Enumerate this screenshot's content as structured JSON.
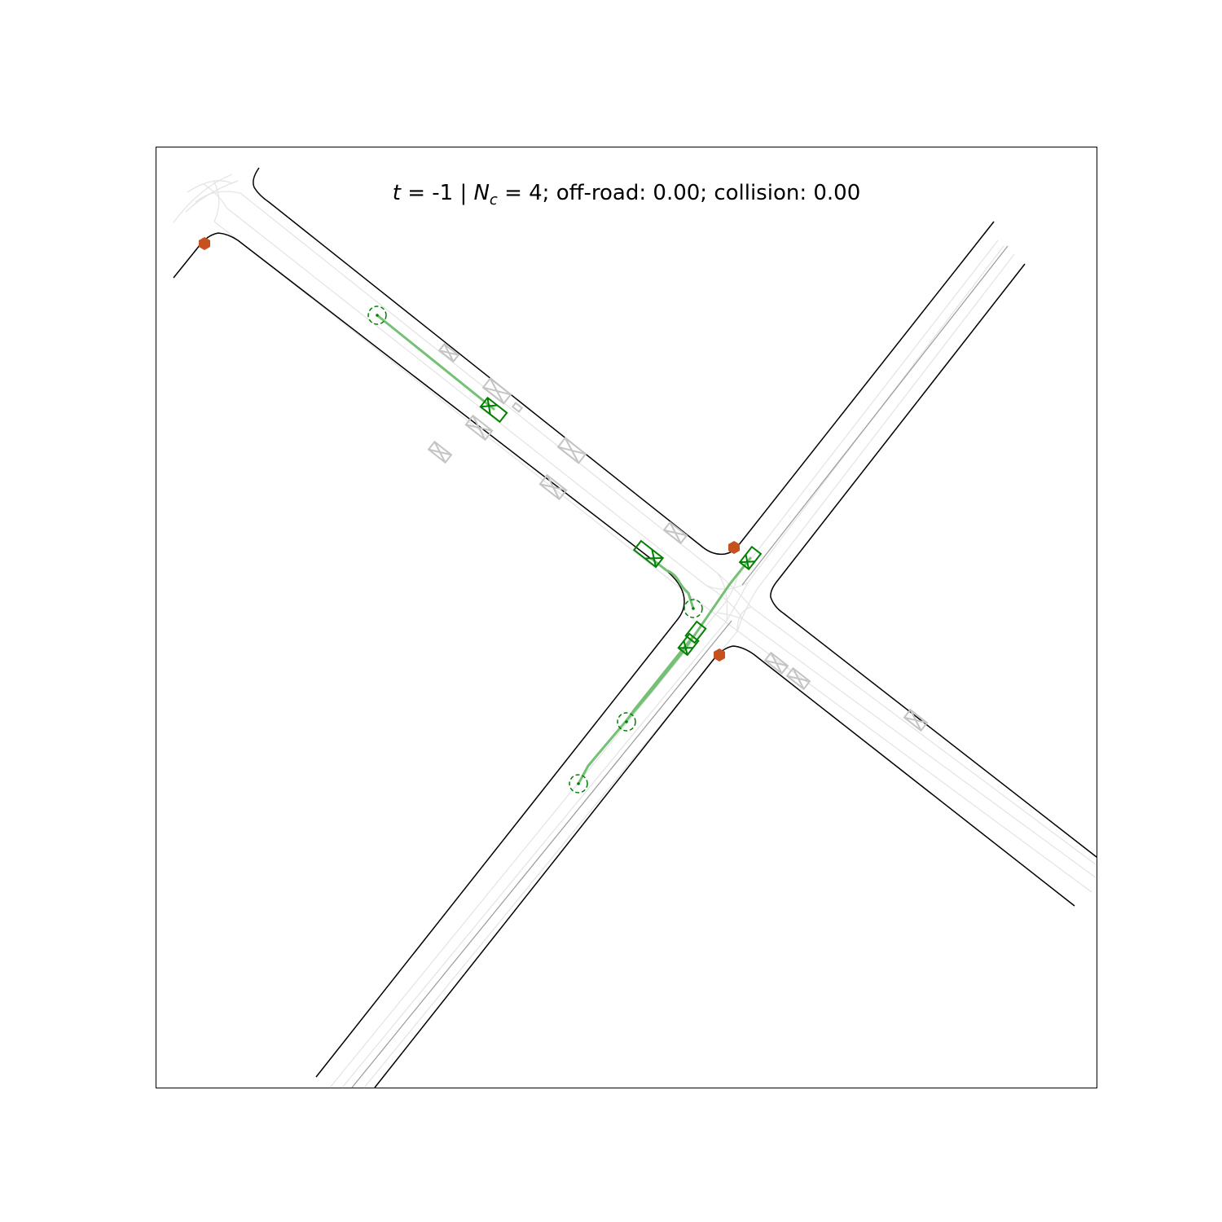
{
  "title": {
    "t_var": "t",
    "t_value": " = -1  | ",
    "n_var": "N",
    "n_sub": "c",
    "rest": " = 4; off-road: 0.00; collision: 0.00"
  },
  "colors": {
    "road_edge": "#000000",
    "lane_line": "#e3e3e3",
    "center_line": "#9a9a9a",
    "agent_controlled": "#008000",
    "trajectory": "#74c074",
    "agent_other": "#c4c4c4",
    "stop_sign": "#c5511e"
  },
  "legend": []
}
